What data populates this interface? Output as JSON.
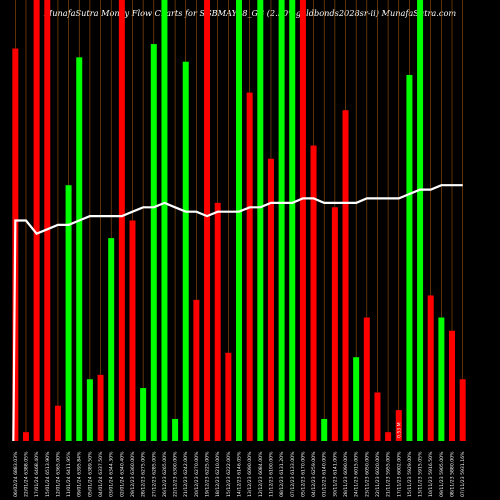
{
  "chart_data": {
    "type": "bar",
    "title": "MunafaSutra  Money Flow  Charts for SGBMAY28_GB                    (2.50%goldbonds2028sr-ii) MunafaSutra.com",
    "ylim": [
      0,
      100
    ],
    "colors": {
      "up": "#00ff00",
      "down": "#ff0000",
      "line": "#ffffff",
      "grid": "#a0520f",
      "background": "#000000"
    },
    "categories": [
      "06/02/24 6883.03%",
      "22/01/24 6388.05%",
      "17/01/24 6468.40%",
      "15/01/24 6513.90%",
      "12/01/24 6365.00%",
      "11/01/24 6411.95%",
      "09/01/24 6395.84%",
      "05/01/24 6389.50%",
      "04/01/24 6337.50%",
      "03/01/24 6344.30%",
      "02/01/24 6340.40%",
      "29/12/23 6360.00%",
      "28/12/23 6275.00%",
      "27/12/23 6285.00%",
      "26/12/23 6265.00%",
      "22/12/23 6300.00%",
      "21/12/23 6242.00%",
      "20/12/23 6270.00%",
      "19/12/23 6225.00%",
      "18/12/23 6210.00%",
      "15/12/23 6222.00%",
      "14/12/23 6146.05%",
      "13/12/23 6090.00%",
      "12/12/23 6084.00%",
      "11/12/23 6100.00%",
      "08/12/23 6131.20%",
      "07/12/23 6133.00%",
      "05/12/23 6170.00%",
      "04/12/23 6259.00%",
      "01/12/23 6140.00%",
      "30/11/23 6141.00%",
      "28/11/23 6090.00%",
      "24/11/23 6015.00%",
      "23/11/23 6050.00%",
      "22/11/23 6020.00%",
      "21/11/23 5955.00%",
      "17/11/23 6002.00%",
      "15/11/23 5929.00%",
      "13/11/23 5915.05%",
      "10/11/23 5916.50%",
      "09/11/23 5905.00%",
      "08/11/23 5880.00%",
      "07/11/23 5931.16%"
    ],
    "values": [
      89,
      2,
      100,
      100,
      8,
      58,
      87,
      14,
      15,
      46,
      100,
      50,
      12,
      90,
      100,
      5,
      86,
      32,
      100,
      54,
      20,
      100,
      79,
      100,
      64,
      100,
      100,
      100,
      67,
      5,
      53,
      75,
      19,
      28,
      11,
      2,
      7,
      83,
      100,
      33,
      28,
      25,
      14
    ],
    "direction": [
      "down",
      "down",
      "down",
      "down",
      "down",
      "up",
      "up",
      "up",
      "down",
      "up",
      "down",
      "down",
      "up",
      "up",
      "up",
      "up",
      "up",
      "down",
      "down",
      "down",
      "down",
      "up",
      "down",
      "up",
      "down",
      "up",
      "up",
      "down",
      "down",
      "up",
      "down",
      "down",
      "up",
      "down",
      "down",
      "down",
      "down",
      "up",
      "up",
      "down",
      "up",
      "down",
      "down"
    ],
    "line": [
      50,
      50,
      47,
      48,
      49,
      49,
      50,
      51,
      51,
      51,
      51,
      52,
      53,
      53,
      54,
      53,
      52,
      52,
      51,
      52,
      52,
      52,
      53,
      53,
      54,
      54,
      54,
      55,
      55,
      54,
      54,
      54,
      54,
      55,
      55,
      55,
      55,
      56,
      57,
      57,
      58,
      58,
      58
    ],
    "annotations": [
      "0.53 M"
    ]
  }
}
